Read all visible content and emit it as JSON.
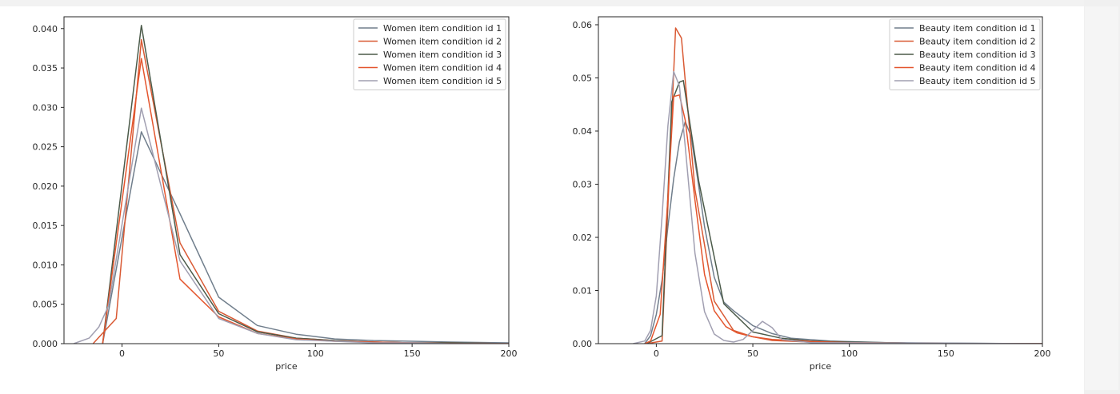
{
  "colors": {
    "c1": "#707e8c",
    "c2": "#d95a34",
    "c3": "#4b5a49",
    "c4": "#e4562e",
    "c5": "#a19fb1"
  },
  "chart_data": [
    {
      "type": "line",
      "xlabel": "price",
      "ylabel": "",
      "xlim": [
        -30,
        200
      ],
      "ylim": [
        0,
        0.0415
      ],
      "xticks": [
        0,
        50,
        100,
        150,
        200
      ],
      "yticks": [
        0.0,
        0.005,
        0.01,
        0.015,
        0.02,
        0.025,
        0.03,
        0.035,
        0.04
      ],
      "ytick_labels": [
        "0.000",
        "0.005",
        "0.010",
        "0.015",
        "0.020",
        "0.025",
        "0.030",
        "0.035",
        "0.040"
      ],
      "legend_position": "upper right",
      "series": [
        {
          "name": "Women item condition id 1",
          "color_key": "c1",
          "x": [
            -10,
            10,
            30,
            50,
            70,
            90,
            110,
            130,
            150,
            170,
            200
          ],
          "y": [
            0.0,
            0.0269,
            0.0165,
            0.0059,
            0.0023,
            0.0012,
            0.0006,
            0.0004,
            0.0003,
            0.0002,
            0.0001
          ]
        },
        {
          "name": "Women item condition id 2",
          "color_key": "c2",
          "x": [
            -15,
            -3,
            10,
            30,
            50,
            70,
            90,
            110,
            130,
            150,
            170,
            200
          ],
          "y": [
            0.0,
            0.0032,
            0.0386,
            0.0128,
            0.0041,
            0.0016,
            0.0007,
            0.0004,
            0.0002,
            0.0001,
            0.0001,
            0.0
          ]
        },
        {
          "name": "Women item condition id 3",
          "color_key": "c3",
          "x": [
            -10,
            10,
            30,
            50,
            70,
            90,
            110,
            130,
            150,
            170,
            200
          ],
          "y": [
            0.0,
            0.0404,
            0.0113,
            0.0038,
            0.0015,
            0.0007,
            0.0004,
            0.0002,
            0.0001,
            0.0001,
            0.0
          ]
        },
        {
          "name": "Women item condition id 4",
          "color_key": "c4",
          "x": [
            -10,
            10,
            30,
            50,
            70,
            90,
            110,
            130,
            150,
            170,
            200
          ],
          "y": [
            0.0,
            0.0362,
            0.0082,
            0.0034,
            0.0013,
            0.0006,
            0.0003,
            0.0002,
            0.0001,
            0.0,
            0.0
          ]
        },
        {
          "name": "Women item condition id 5",
          "color_key": "c5",
          "x": [
            -25,
            -17,
            -12,
            -7,
            10,
            30,
            50,
            70,
            90,
            110,
            130,
            150,
            170,
            200
          ],
          "y": [
            0.0,
            0.0007,
            0.0021,
            0.0048,
            0.0299,
            0.0105,
            0.0032,
            0.0013,
            0.0005,
            0.0003,
            0.0001,
            0.0001,
            0.0,
            0.0
          ]
        }
      ]
    },
    {
      "type": "line",
      "xlabel": "price",
      "ylabel": "",
      "xlim": [
        -30,
        200
      ],
      "ylim": [
        0,
        0.0615
      ],
      "xticks": [
        0,
        50,
        100,
        150,
        200
      ],
      "yticks": [
        0.0,
        0.01,
        0.02,
        0.03,
        0.04,
        0.05,
        0.06
      ],
      "ytick_labels": [
        "0.00",
        "0.01",
        "0.02",
        "0.03",
        "0.04",
        "0.05",
        "0.06"
      ],
      "legend_position": "upper right",
      "series": [
        {
          "name": "Beauty item condition id 1",
          "color_key": "c1",
          "x": [
            -6,
            -3,
            0,
            3,
            6,
            9,
            12,
            15,
            18,
            21,
            25,
            30,
            35,
            40,
            50,
            60,
            70,
            90,
            120,
            150,
            200
          ],
          "y": [
            0.0,
            0.0015,
            0.0055,
            0.012,
            0.022,
            0.031,
            0.038,
            0.0418,
            0.039,
            0.032,
            0.022,
            0.0125,
            0.0078,
            0.0062,
            0.0034,
            0.0019,
            0.001,
            0.0005,
            0.0002,
            0.0001,
            0.0
          ]
        },
        {
          "name": "Beauty item condition id 2",
          "color_key": "c2",
          "x": [
            -5,
            3,
            10,
            13,
            20,
            30,
            40,
            50,
            60,
            80,
            100,
            130,
            160,
            200
          ],
          "y": [
            0.0,
            0.0005,
            0.0594,
            0.0575,
            0.029,
            0.008,
            0.0025,
            0.0013,
            0.0006,
            0.0003,
            0.0002,
            0.0001,
            0.0,
            0.0
          ]
        },
        {
          "name": "Beauty item condition id 3",
          "color_key": "c3",
          "x": [
            -5,
            3,
            8,
            12,
            14,
            22,
            35,
            50,
            65,
            80,
            100,
            130,
            160,
            200
          ],
          "y": [
            0.0,
            0.0015,
            0.0455,
            0.0492,
            0.0495,
            0.0305,
            0.0075,
            0.0022,
            0.001,
            0.0005,
            0.0003,
            0.0001,
            0.0,
            0.0
          ]
        },
        {
          "name": "Beauty item condition id 4",
          "color_key": "c4",
          "x": [
            -6,
            -3,
            2,
            6,
            9,
            12,
            15,
            20,
            25,
            30,
            36,
            42,
            50,
            60,
            80,
            100,
            130,
            160,
            200
          ],
          "y": [
            0.0,
            0.0005,
            0.0055,
            0.0275,
            0.0465,
            0.0468,
            0.042,
            0.027,
            0.013,
            0.0062,
            0.0032,
            0.002,
            0.0013,
            0.0008,
            0.0004,
            0.0002,
            0.0001,
            0.0,
            0.0
          ]
        },
        {
          "name": "Beauty item condition id 5",
          "color_key": "c5",
          "x": [
            -12,
            -6,
            -3,
            0,
            3,
            6,
            9,
            12,
            15,
            20,
            25,
            30,
            35,
            40,
            45,
            50,
            55,
            60,
            65,
            80,
            200
          ],
          "y": [
            0.0,
            0.0005,
            0.0025,
            0.009,
            0.024,
            0.041,
            0.0512,
            0.0485,
            0.037,
            0.017,
            0.006,
            0.0018,
            0.0006,
            0.0003,
            0.0008,
            0.0025,
            0.0042,
            0.003,
            0.0008,
            0.0002,
            0.0
          ]
        }
      ]
    }
  ]
}
